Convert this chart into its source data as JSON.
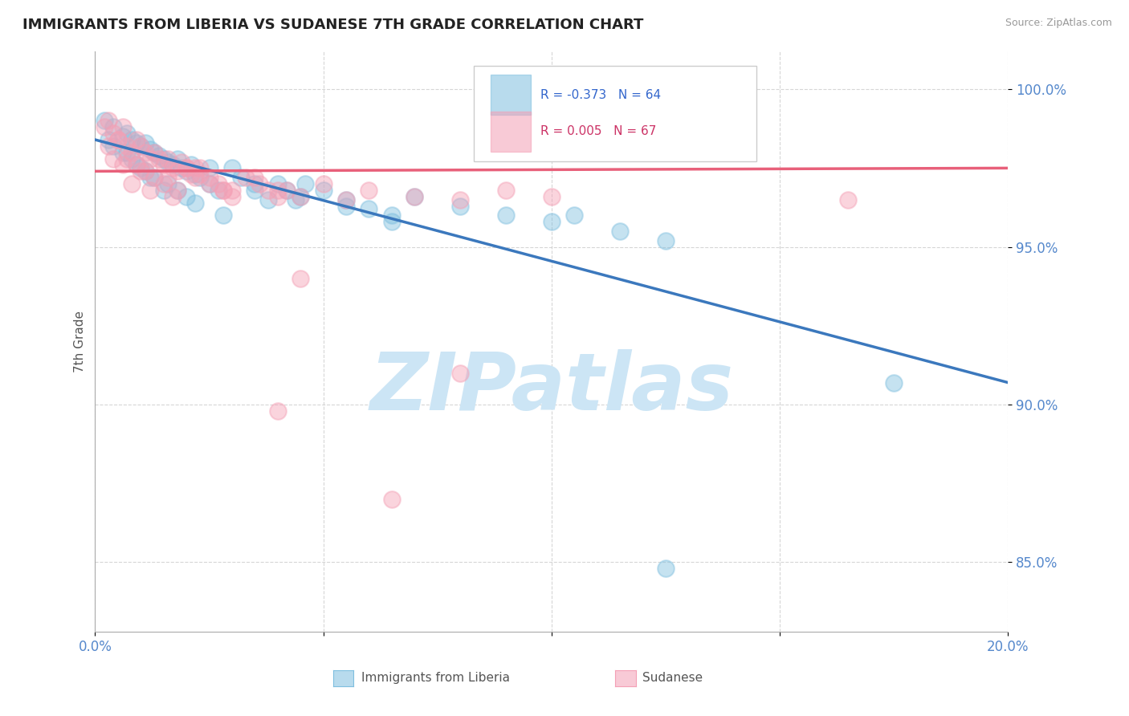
{
  "title": "IMMIGRANTS FROM LIBERIA VS SUDANESE 7TH GRADE CORRELATION CHART",
  "source_text": "Source: ZipAtlas.com",
  "ylabel": "7th Grade",
  "xlim": [
    0.0,
    0.2
  ],
  "ylim": [
    0.828,
    1.012
  ],
  "xticks": [
    0.0,
    0.05,
    0.1,
    0.15,
    0.2
  ],
  "xticklabels": [
    "0.0%",
    "",
    "",
    "",
    "20.0%"
  ],
  "yticks": [
    0.85,
    0.9,
    0.95,
    1.0
  ],
  "yticklabels": [
    "85.0%",
    "90.0%",
    "95.0%",
    "100.0%"
  ],
  "legend_r1": "R = -0.373",
  "legend_n1": "N = 64",
  "legend_r2": "R = 0.005",
  "legend_n2": "N = 67",
  "color_blue": "#7fbfdf",
  "color_pink": "#f4a0b5",
  "line_blue": "#3b78bd",
  "line_pink": "#e8607a",
  "watermark": "ZIPatlas",
  "watermark_color": "#cce5f5",
  "blue_scatter_x": [
    0.002,
    0.004,
    0.006,
    0.007,
    0.008,
    0.009,
    0.01,
    0.011,
    0.012,
    0.013,
    0.014,
    0.015,
    0.016,
    0.017,
    0.018,
    0.019,
    0.02,
    0.021,
    0.022,
    0.023,
    0.025,
    0.027,
    0.03,
    0.032,
    0.035,
    0.038,
    0.04,
    0.042,
    0.044,
    0.046,
    0.05,
    0.055,
    0.06,
    0.065,
    0.07,
    0.08,
    0.09,
    0.1,
    0.105,
    0.115,
    0.125,
    0.065,
    0.055,
    0.045,
    0.035,
    0.025,
    0.015,
    0.012,
    0.01,
    0.008,
    0.006,
    0.004,
    0.003,
    0.007,
    0.009,
    0.011,
    0.013,
    0.016,
    0.018,
    0.02,
    0.022,
    0.028,
    0.175,
    0.125
  ],
  "blue_scatter_y": [
    0.99,
    0.988,
    0.985,
    0.986,
    0.984,
    0.983,
    0.982,
    0.983,
    0.981,
    0.98,
    0.979,
    0.978,
    0.977,
    0.976,
    0.978,
    0.975,
    0.974,
    0.976,
    0.973,
    0.972,
    0.97,
    0.968,
    0.975,
    0.972,
    0.968,
    0.965,
    0.97,
    0.968,
    0.965,
    0.97,
    0.968,
    0.965,
    0.962,
    0.96,
    0.966,
    0.963,
    0.96,
    0.958,
    0.96,
    0.955,
    0.952,
    0.958,
    0.963,
    0.966,
    0.97,
    0.975,
    0.968,
    0.972,
    0.975,
    0.978,
    0.98,
    0.982,
    0.984,
    0.98,
    0.976,
    0.974,
    0.972,
    0.97,
    0.968,
    0.966,
    0.964,
    0.96,
    0.907,
    0.848
  ],
  "pink_scatter_x": [
    0.002,
    0.003,
    0.004,
    0.005,
    0.006,
    0.007,
    0.008,
    0.009,
    0.01,
    0.011,
    0.012,
    0.013,
    0.014,
    0.015,
    0.016,
    0.017,
    0.018,
    0.019,
    0.02,
    0.021,
    0.022,
    0.023,
    0.025,
    0.027,
    0.03,
    0.033,
    0.036,
    0.038,
    0.04,
    0.042,
    0.003,
    0.005,
    0.007,
    0.009,
    0.011,
    0.013,
    0.015,
    0.018,
    0.02,
    0.023,
    0.025,
    0.028,
    0.03,
    0.05,
    0.06,
    0.07,
    0.08,
    0.09,
    0.1,
    0.04,
    0.045,
    0.035,
    0.028,
    0.022,
    0.016,
    0.01,
    0.006,
    0.004,
    0.008,
    0.012,
    0.017,
    0.055,
    0.165,
    0.045,
    0.08,
    0.04,
    0.065
  ],
  "pink_scatter_y": [
    0.988,
    0.99,
    0.986,
    0.984,
    0.988,
    0.982,
    0.98,
    0.984,
    0.982,
    0.98,
    0.978,
    0.98,
    0.978,
    0.976,
    0.978,
    0.975,
    0.974,
    0.977,
    0.975,
    0.973,
    0.972,
    0.975,
    0.972,
    0.97,
    0.968,
    0.972,
    0.97,
    0.968,
    0.966,
    0.968,
    0.982,
    0.984,
    0.978,
    0.976,
    0.974,
    0.972,
    0.97,
    0.968,
    0.975,
    0.973,
    0.97,
    0.968,
    0.966,
    0.97,
    0.968,
    0.966,
    0.965,
    0.968,
    0.966,
    0.968,
    0.966,
    0.972,
    0.968,
    0.975,
    0.972,
    0.974,
    0.976,
    0.978,
    0.97,
    0.968,
    0.966,
    0.965,
    0.965,
    0.94,
    0.91,
    0.898,
    0.87
  ],
  "blue_line_x": [
    0.0,
    0.2
  ],
  "blue_line_y": [
    0.984,
    0.907
  ],
  "pink_line_x": [
    0.0,
    0.2
  ],
  "pink_line_y": [
    0.974,
    0.975
  ],
  "grid_color": "#cccccc",
  "grid_style": "--"
}
